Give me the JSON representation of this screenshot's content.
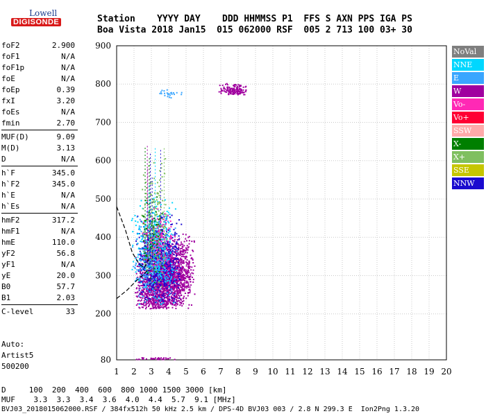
{
  "logo": {
    "line1": "Lowell",
    "line2": "DIGISONDE"
  },
  "header": {
    "line1": "Station    YYYY DAY    DDD HHMMSS P1  FFS S AXN PPS IGA PS",
    "line2": "Boa Vista 2018 Jan15  015 062000 RSF  005 2 713 100 03+ 30"
  },
  "params": [
    {
      "k": "foF2",
      "v": "2.900"
    },
    {
      "k": "foF1",
      "v": "N/A"
    },
    {
      "k": "foF1p",
      "v": "N/A"
    },
    {
      "k": "foE",
      "v": "N/A"
    },
    {
      "k": "foEp",
      "v": "0.39"
    },
    {
      "k": "fxI",
      "v": "3.20"
    },
    {
      "k": "foEs",
      "v": "N/A"
    },
    {
      "k": "fmin",
      "v": "2.70"
    },
    {
      "k": "MUF(D)",
      "v": "9.09"
    },
    {
      "k": "M(D)",
      "v": "3.13"
    },
    {
      "k": "D",
      "v": "N/A"
    },
    {
      "k": "h`F",
      "v": "345.0"
    },
    {
      "k": "h`F2",
      "v": "345.0"
    },
    {
      "k": "h`E",
      "v": "N/A"
    },
    {
      "k": "h`Es",
      "v": "N/A"
    },
    {
      "k": "hmF2",
      "v": "317.2"
    },
    {
      "k": "hmF1",
      "v": "N/A"
    },
    {
      "k": "hmE",
      "v": "110.0"
    },
    {
      "k": "yF2",
      "v": "56.8"
    },
    {
      "k": "yF1",
      "v": "N/A"
    },
    {
      "k": "yE",
      "v": "20.0"
    },
    {
      "k": "B0",
      "v": "57.7"
    },
    {
      "k": "B1",
      "v": "2.03"
    },
    {
      "k": "C-level",
      "v": "33"
    }
  ],
  "auto": {
    "line1": "Auto:",
    "line2": "Artist5",
    "line3": "500200"
  },
  "legend": [
    {
      "label": "NoVal",
      "color": "#7f7f7f"
    },
    {
      "label": "NNE",
      "color": "#00d7ff"
    },
    {
      "label": "E",
      "color": "#3aa6ff"
    },
    {
      "label": "W",
      "color": "#a0009f"
    },
    {
      "label": "Vo-",
      "color": "#ff29b5"
    },
    {
      "label": "Vo+",
      "color": "#ff0033"
    },
    {
      "label": "SSW",
      "color": "#ffaaaa"
    },
    {
      "label": "X-",
      "color": "#007f00"
    },
    {
      "label": "X+",
      "color": "#7fbf5f"
    },
    {
      "label": "SSE",
      "color": "#c6c600"
    },
    {
      "label": "NNW",
      "color": "#1a0acf"
    }
  ],
  "bottom": {
    "line1": "D     100  200  400  600  800 1000 1500 3000 [km]",
    "line2": "MUF    3.3  3.3  3.4  3.6  4.0  4.4  5.7  9.1 [MHz]",
    "line3": "BVJ03_2018015062000.RSF / 384fx512h 50 kHz 2.5 km / DPS-4D BVJ03 003 / 2.8 N 299.3 E  Ion2Png 1.3.20"
  },
  "chart_data": {
    "type": "scatter",
    "xlim": [
      1,
      20
    ],
    "ylim": [
      80,
      900
    ],
    "x_ticks": [
      "1",
      "2",
      "3",
      "4",
      "5",
      "6",
      "7",
      "8",
      "9",
      "10",
      "11",
      "12",
      "13",
      "14",
      "15",
      "16",
      "17",
      "18",
      "19",
      "20"
    ],
    "y_ticks": [
      "80",
      "200",
      "300",
      "400",
      "500",
      "600",
      "700",
      "800",
      "900"
    ],
    "grid": true,
    "clusters": [
      {
        "name": "W",
        "x": [
          2.0,
          5.5
        ],
        "y": [
          215,
          420
        ],
        "n": 2200,
        "color": "#a0009f"
      },
      {
        "name": "NNW",
        "x": [
          2.0,
          4.8
        ],
        "y": [
          220,
          470
        ],
        "n": 700,
        "color": "#1a0acf"
      },
      {
        "name": "NNE",
        "x": [
          1.8,
          4.5
        ],
        "y": [
          220,
          520
        ],
        "n": 350,
        "color": "#00d7ff"
      },
      {
        "name": "E",
        "x": [
          1.8,
          4.5
        ],
        "y": [
          220,
          480
        ],
        "n": 250,
        "color": "#3aa6ff"
      },
      {
        "name": "X+",
        "x": [
          2.3,
          4.0
        ],
        "y": [
          250,
          640
        ],
        "n": 200,
        "color": "#7fbf5f"
      },
      {
        "name": "X-",
        "x": [
          2.4,
          3.8
        ],
        "y": [
          280,
          520
        ],
        "n": 80,
        "color": "#007f00"
      },
      {
        "name": "Vo-",
        "x": [
          2.3,
          4.5
        ],
        "y": [
          300,
          480
        ],
        "n": 120,
        "color": "#ff29b5"
      },
      {
        "name": "W-echo",
        "x": [
          6.8,
          8.6
        ],
        "y": [
          770,
          805
        ],
        "n": 150,
        "color": "#a0009f"
      },
      {
        "name": "NNE-echo",
        "x": [
          3.2,
          4.8
        ],
        "y": [
          765,
          790
        ],
        "n": 25,
        "color": "#3aa6ff"
      },
      {
        "name": "W-low",
        "x": [
          1.9,
          4.4
        ],
        "y": [
          82,
          88
        ],
        "n": 35,
        "color": "#a0009f"
      }
    ],
    "profile": [
      [
        1.0,
        480
      ],
      [
        1.5,
        420
      ],
      [
        1.9,
        360
      ],
      [
        2.3,
        330
      ],
      [
        2.6,
        320
      ],
      [
        2.85,
        345
      ]
    ],
    "profile_low": [
      [
        1.0,
        240
      ],
      [
        1.6,
        262
      ],
      [
        2.1,
        285
      ],
      [
        2.6,
        305
      ],
      [
        2.9,
        320
      ]
    ]
  }
}
